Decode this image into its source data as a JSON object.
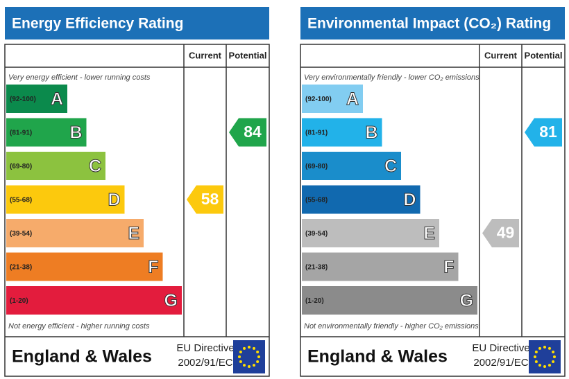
{
  "panels": [
    {
      "title": "Energy Efficiency Rating",
      "columns": [
        "Current",
        "Potential"
      ],
      "top_note": "Very energy efficient - lower running costs",
      "bottom_note": "Not energy efficient - higher running costs",
      "bands": [
        {
          "range": "(92-100)",
          "letter": "A",
          "color": "#0b8a4c"
        },
        {
          "range": "(81-91)",
          "letter": "B",
          "color": "#20a54b"
        },
        {
          "range": "(69-80)",
          "letter": "C",
          "color": "#8cc23f"
        },
        {
          "range": "(55-68)",
          "letter": "D",
          "color": "#fcc90d"
        },
        {
          "range": "(39-54)",
          "letter": "E",
          "color": "#f6ab6b"
        },
        {
          "range": "(21-38)",
          "letter": "F",
          "color": "#ee7d23"
        },
        {
          "range": "(1-20)",
          "letter": "G",
          "color": "#e31c3d"
        }
      ],
      "current": 58,
      "potential": 84,
      "footer": "England & Wales",
      "directive": [
        "EU Directive",
        "2002/91/EC"
      ]
    },
    {
      "title": "Environmental Impact (CO₂) Rating",
      "columns": [
        "Current",
        "Potential"
      ],
      "top_note": "Very environmentally friendly - lower CO₂ emissions",
      "bottom_note": "Not environmentally friendly - higher CO₂ emissions",
      "bands": [
        {
          "range": "(92-100)",
          "letter": "A",
          "color": "#82cdf1"
        },
        {
          "range": "(81-91)",
          "letter": "B",
          "color": "#22b2e9"
        },
        {
          "range": "(69-80)",
          "letter": "C",
          "color": "#1a8dcb"
        },
        {
          "range": "(55-68)",
          "letter": "D",
          "color": "#1169af"
        },
        {
          "range": "(39-54)",
          "letter": "E",
          "color": "#bdbdbd"
        },
        {
          "range": "(21-38)",
          "letter": "F",
          "color": "#a5a5a5"
        },
        {
          "range": "(1-20)",
          "letter": "G",
          "color": "#8b8b8b"
        }
      ],
      "current": 49,
      "potential": 81,
      "footer": "England & Wales",
      "directive": [
        "EU Directive",
        "2002/91/EC"
      ]
    }
  ]
}
